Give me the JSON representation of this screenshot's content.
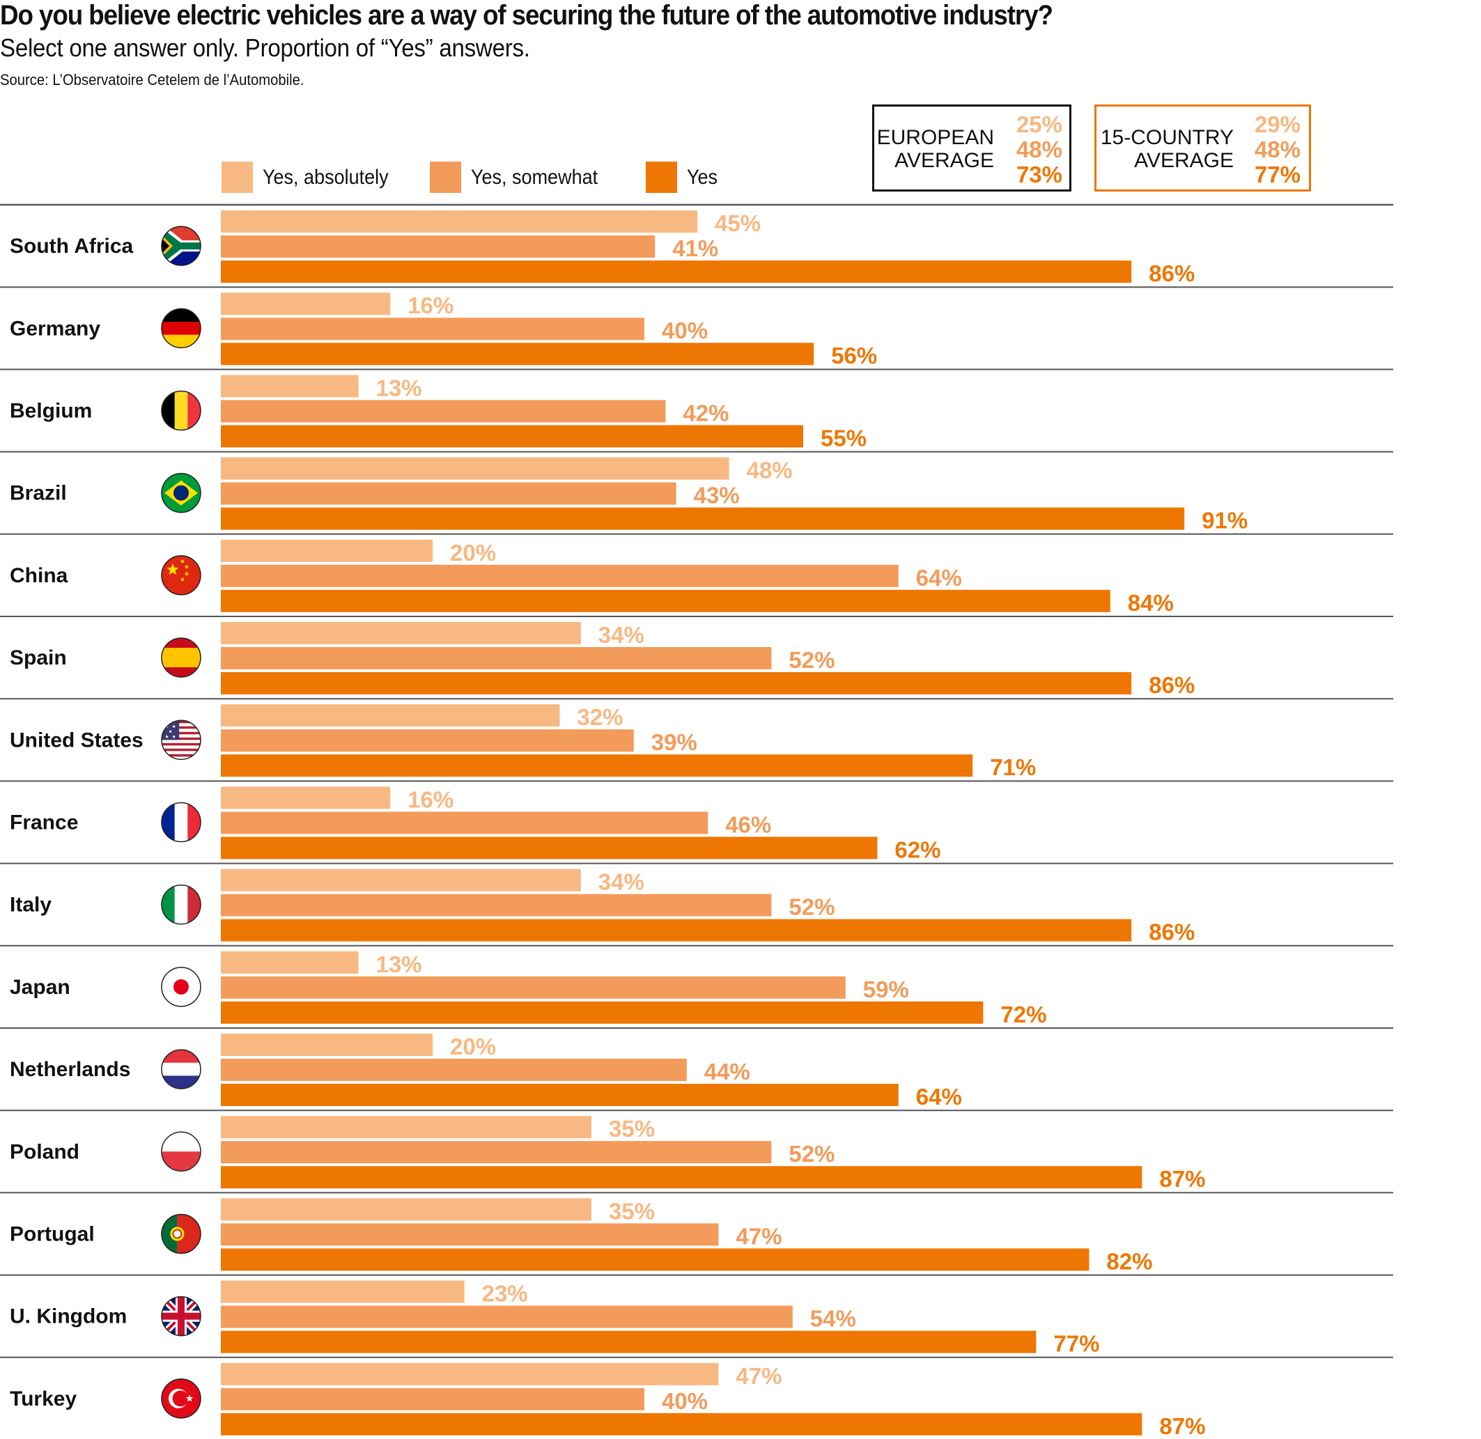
{
  "header": {
    "title": "Do you believe electric vehicles are a way of securing the future of the automotive industry?",
    "subtitle": "Select one answer only. Proportion of “Yes” answers.",
    "source": "Source: L’Observatoire Cetelem de l’Automobile."
  },
  "colors": {
    "yes_absolutely": "#F8B882",
    "yes_somewhat": "#F39B5A",
    "yes": "#EE7703",
    "divider": "#555555",
    "text": "#111111"
  },
  "legend": [
    {
      "label": "Yes, absolutely",
      "color_key": "yes_absolutely"
    },
    {
      "label": "Yes, somewhat",
      "color_key": "yes_somewhat"
    },
    {
      "label": "Yes",
      "color_key": "yes"
    }
  ],
  "averages": [
    {
      "label": "EUROPEAN\nAVERAGE",
      "values": [
        "25%",
        "48%",
        "73%"
      ],
      "border": "black"
    },
    {
      "label": "15-COUNTRY\nAVERAGE",
      "values": [
        "29%",
        "48%",
        "77%"
      ],
      "border": "orange"
    }
  ],
  "chart_data": {
    "type": "bar",
    "orientation": "horizontal",
    "title": "Do you believe electric vehicles are a way of securing the future of the automotive industry?",
    "subtitle": "Select one answer only. Proportion of “Yes” answers.",
    "xlabel": "",
    "ylabel": "",
    "xlim": [
      0,
      100
    ],
    "unit": "%",
    "grid": false,
    "legend_position": "top",
    "categories": [
      "South Africa",
      "Germany",
      "Belgium",
      "Brazil",
      "China",
      "Spain",
      "United States",
      "France",
      "Italy",
      "Japan",
      "Netherlands",
      "Poland",
      "Portugal",
      "U. Kingdom",
      "Turkey"
    ],
    "flags": [
      "south-africa",
      "germany",
      "belgium",
      "brazil",
      "china",
      "spain",
      "united-states",
      "france",
      "italy",
      "japan",
      "netherlands",
      "poland",
      "portugal",
      "united-kingdom",
      "turkey"
    ],
    "series": [
      {
        "name": "Yes, absolutely",
        "color": "#F8B882",
        "values": [
          45,
          16,
          13,
          48,
          20,
          34,
          32,
          16,
          34,
          13,
          20,
          35,
          35,
          23,
          47
        ]
      },
      {
        "name": "Yes, somewhat",
        "color": "#F39B5A",
        "values": [
          41,
          40,
          42,
          43,
          64,
          52,
          39,
          46,
          52,
          59,
          44,
          52,
          47,
          54,
          40
        ]
      },
      {
        "name": "Yes",
        "color": "#EE7703",
        "values": [
          86,
          56,
          55,
          91,
          84,
          86,
          71,
          62,
          86,
          72,
          64,
          87,
          82,
          77,
          87
        ]
      }
    ],
    "reference_values": {
      "European average": {
        "Yes, absolutely": 25,
        "Yes, somewhat": 48,
        "Yes": 73
      },
      "15-country average": {
        "Yes, absolutely": 29,
        "Yes, somewhat": 48,
        "Yes": 77
      }
    }
  }
}
